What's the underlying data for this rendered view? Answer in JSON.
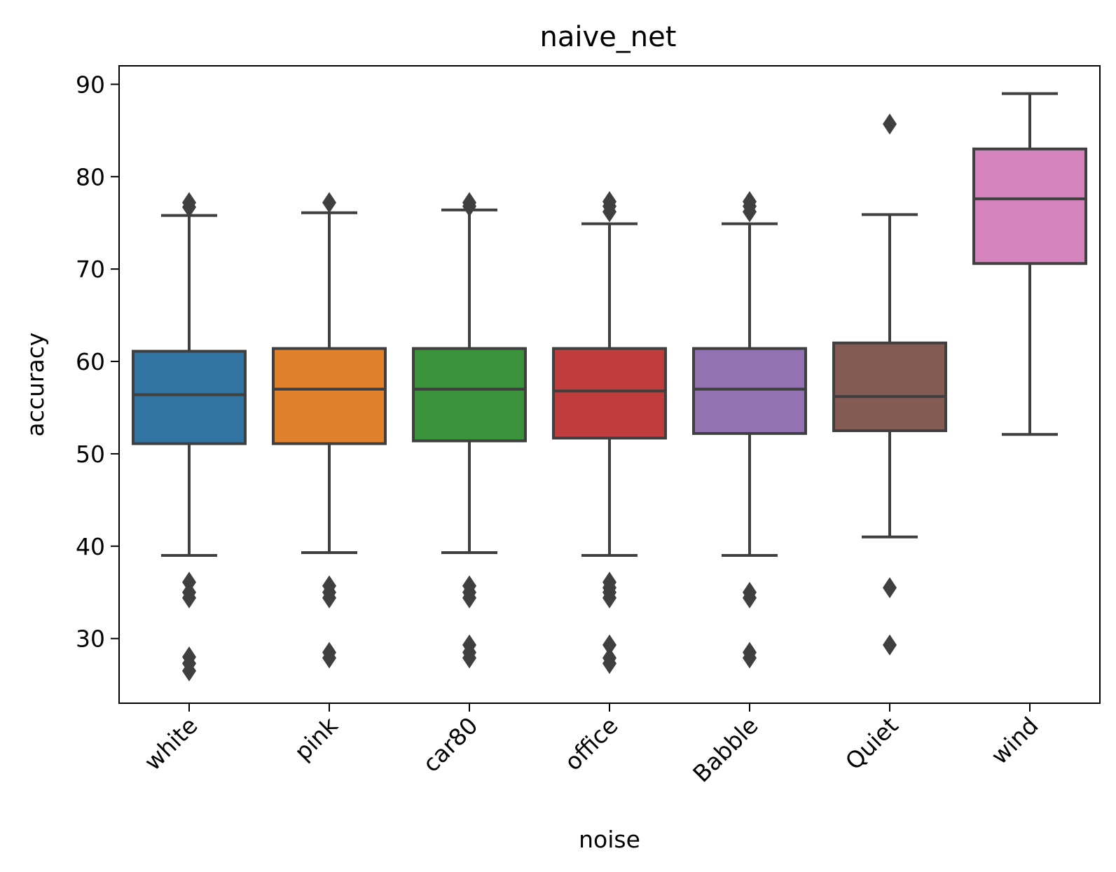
{
  "chart_data": {
    "type": "boxplot",
    "title": "naive_net",
    "xlabel": "noise",
    "ylabel": "accuracy",
    "ylim": [
      23,
      92
    ],
    "yticks": [
      30,
      40,
      50,
      60,
      70,
      80,
      90
    ],
    "grid": false,
    "categories": [
      "white",
      "pink",
      "car80",
      "office",
      "Babble",
      "Quiet",
      "wind"
    ],
    "boxes": [
      {
        "category": "white",
        "whisker_low": 39.0,
        "q1": 51.1,
        "median": 56.4,
        "q3": 61.1,
        "whisker_high": 75.8,
        "outliers": [
          77.2,
          76.7,
          36.1,
          35.0,
          34.4,
          28.0,
          27.3,
          26.5
        ],
        "color": "#3274a1"
      },
      {
        "category": "pink",
        "whisker_low": 39.3,
        "q1": 51.1,
        "median": 57.0,
        "q3": 61.4,
        "whisker_high": 76.1,
        "outliers": [
          77.2,
          35.7,
          35.0,
          34.4,
          28.5,
          27.9
        ],
        "color": "#e1812c"
      },
      {
        "category": "car80",
        "whisker_low": 39.3,
        "q1": 51.4,
        "median": 57.0,
        "q3": 61.4,
        "whisker_high": 76.4,
        "outliers": [
          77.2,
          76.8,
          35.7,
          35.0,
          34.4,
          29.3,
          28.5,
          27.9
        ],
        "color": "#3a923a"
      },
      {
        "category": "office",
        "whisker_low": 39.0,
        "q1": 51.7,
        "median": 56.8,
        "q3": 61.4,
        "whisker_high": 74.9,
        "outliers": [
          77.3,
          76.8,
          76.2,
          36.1,
          35.5,
          35.0,
          34.4,
          29.3,
          27.9,
          27.3
        ],
        "color": "#c03d3e"
      },
      {
        "category": "Babble",
        "whisker_low": 39.0,
        "q1": 52.2,
        "median": 57.0,
        "q3": 61.4,
        "whisker_high": 74.9,
        "outliers": [
          77.3,
          76.8,
          76.2,
          35.0,
          34.4,
          28.5,
          27.9
        ],
        "color": "#9372b2"
      },
      {
        "category": "Quiet",
        "whisker_low": 41.0,
        "q1": 52.5,
        "median": 56.2,
        "q3": 62.0,
        "whisker_high": 75.9,
        "outliers": [
          85.7,
          35.5,
          29.3
        ],
        "color": "#845b53"
      },
      {
        "category": "wind",
        "whisker_low": 52.1,
        "q1": 70.6,
        "median": 77.6,
        "q3": 83.0,
        "whisker_high": 89.0,
        "outliers": [],
        "color": "#d684bd"
      }
    ],
    "styles": {
      "line_color": "#3f3f3f",
      "outlier_marker": "diamond"
    }
  }
}
